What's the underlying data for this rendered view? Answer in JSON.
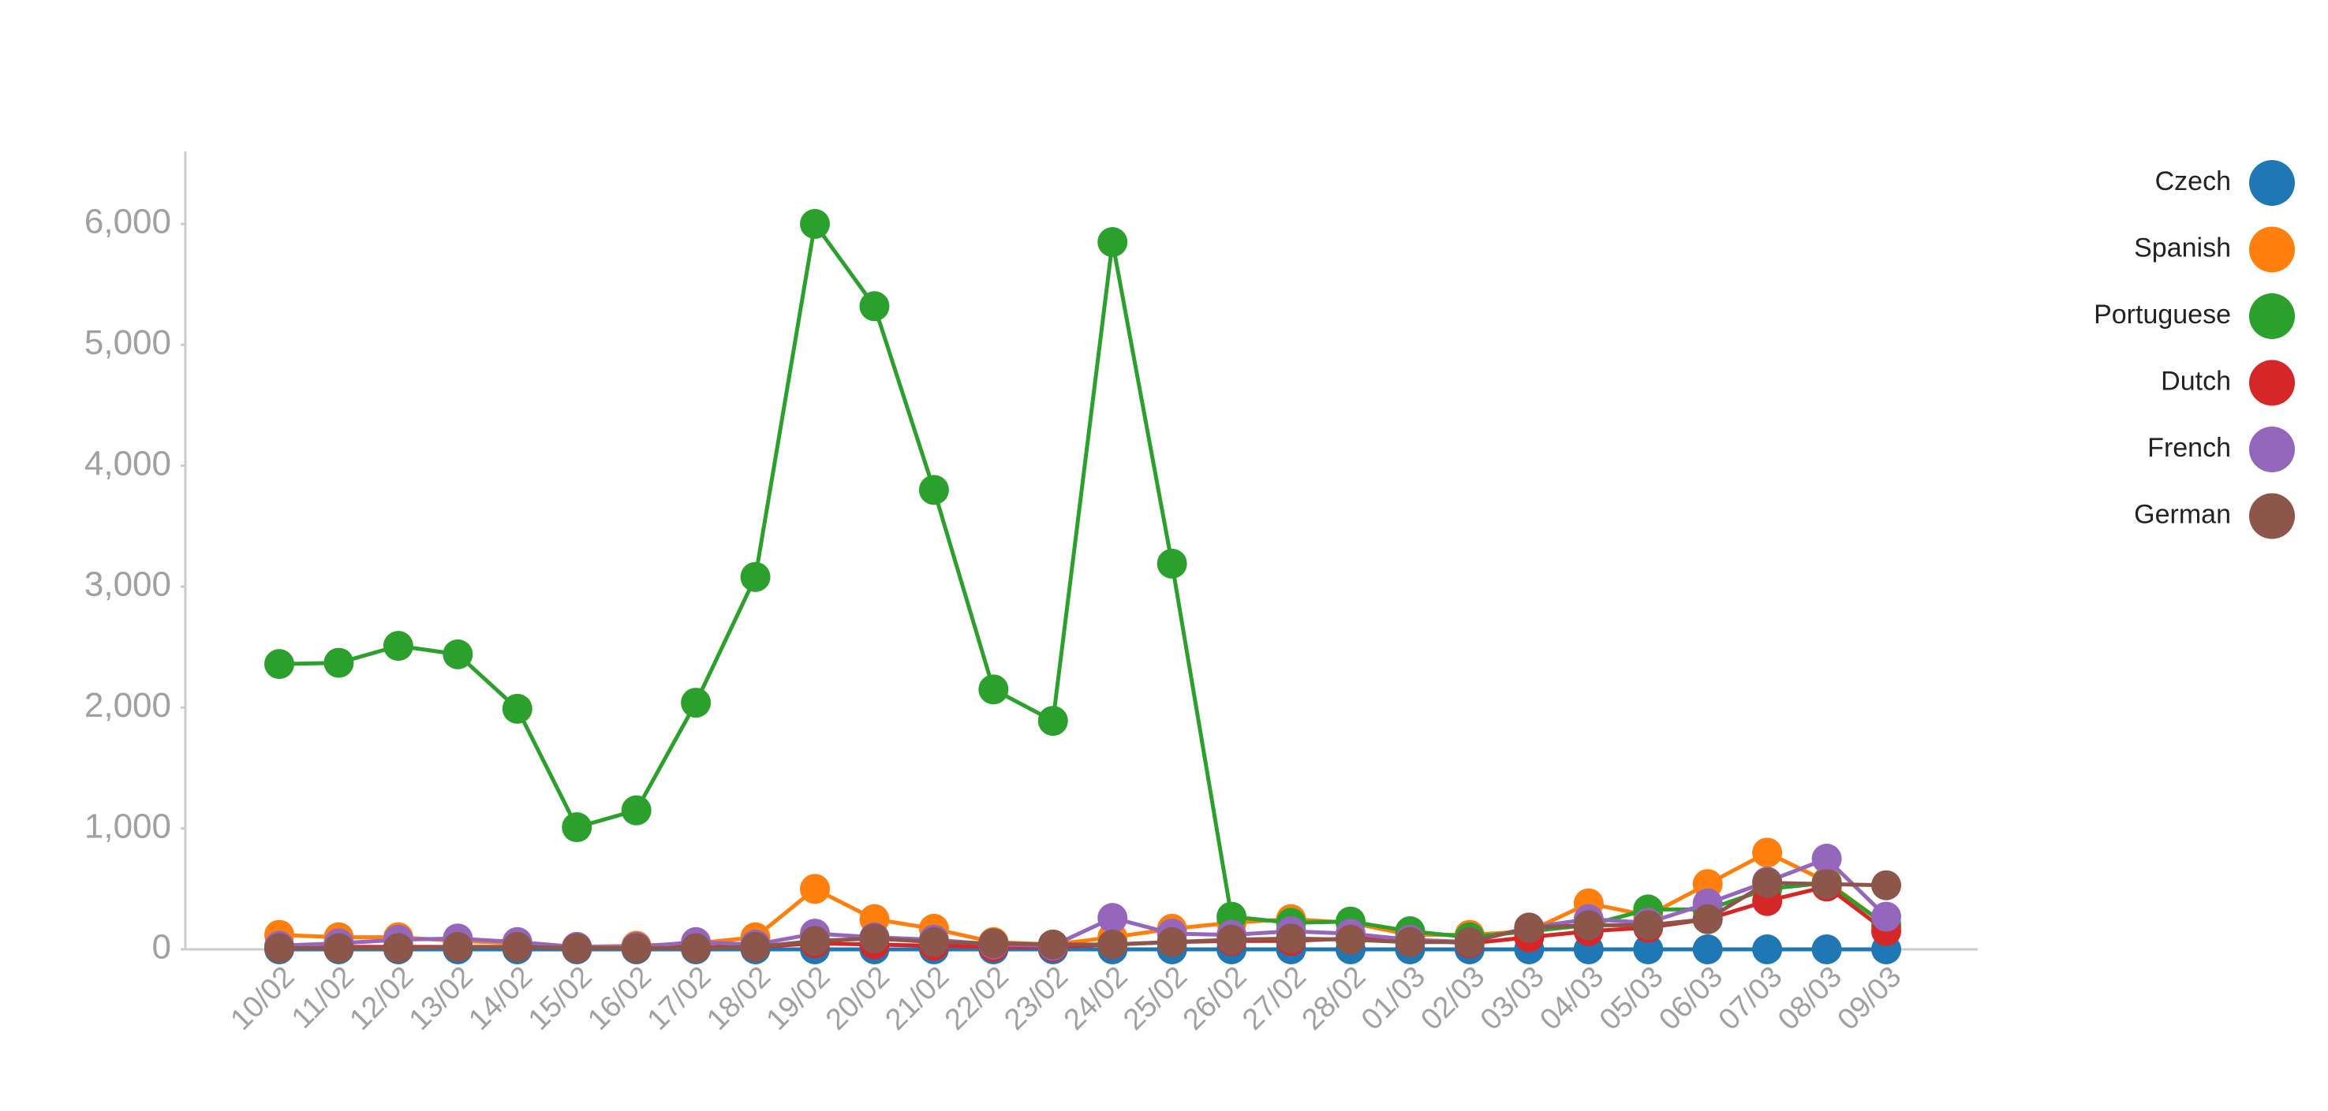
{
  "chart_data": {
    "type": "line",
    "categories": [
      "10/02",
      "11/02",
      "12/02",
      "13/02",
      "14/02",
      "15/02",
      "16/02",
      "17/02",
      "18/02",
      "19/02",
      "20/02",
      "21/02",
      "22/02",
      "23/02",
      "24/02",
      "25/02",
      "26/02",
      "27/02",
      "28/02",
      "01/03",
      "02/03",
      "03/03",
      "04/03",
      "05/03",
      "06/03",
      "07/03",
      "08/03",
      "09/03"
    ],
    "series": [
      {
        "name": "Czech",
        "color": "#1f77b4",
        "values": [
          0,
          0,
          0,
          0,
          0,
          0,
          0,
          0,
          0,
          0,
          0,
          0,
          0,
          0,
          0,
          0,
          0,
          0,
          0,
          0,
          0,
          0,
          0,
          0,
          0,
          0,
          0,
          0
        ]
      },
      {
        "name": "Spanish",
        "color": "#ff7f0e",
        "values": [
          120,
          100,
          100,
          70,
          50,
          20,
          30,
          50,
          100,
          500,
          250,
          170,
          60,
          40,
          100,
          170,
          220,
          250,
          220,
          120,
          120,
          150,
          380,
          280,
          540,
          800,
          560,
          200
        ]
      },
      {
        "name": "Portuguese",
        "color": "#2ca02c",
        "values": [
          2360,
          2370,
          2510,
          2440,
          1990,
          1010,
          1150,
          2040,
          3080,
          6000,
          5320,
          3800,
          2150,
          1890,
          5850,
          3190,
          270,
          220,
          230,
          150,
          100,
          150,
          200,
          330,
          330,
          500,
          550,
          200
        ]
      },
      {
        "name": "Dutch",
        "color": "#d62728",
        "values": [
          20,
          20,
          20,
          20,
          20,
          10,
          10,
          20,
          20,
          50,
          40,
          30,
          20,
          20,
          40,
          60,
          70,
          70,
          90,
          80,
          50,
          100,
          150,
          180,
          250,
          400,
          520,
          150
        ]
      },
      {
        "name": "French",
        "color": "#9467bd",
        "values": [
          30,
          50,
          80,
          90,
          60,
          20,
          20,
          60,
          40,
          130,
          100,
          80,
          40,
          30,
          260,
          130,
          120,
          150,
          130,
          80,
          60,
          180,
          250,
          220,
          380,
          560,
          750,
          270
        ]
      },
      {
        "name": "German",
        "color": "#8c564b",
        "values": [
          10,
          10,
          10,
          20,
          20,
          10,
          10,
          10,
          20,
          70,
          90,
          60,
          50,
          40,
          40,
          60,
          80,
          90,
          80,
          60,
          60,
          180,
          200,
          200,
          250,
          550,
          540,
          530
        ]
      }
    ],
    "ylim": [
      0,
      6600
    ],
    "yticks": [
      0,
      {
        "value": 1000,
        "label": "1,000"
      },
      {
        "value": 2000,
        "label": "2,000"
      },
      {
        "value": 3000,
        "label": "3,000"
      },
      {
        "value": 4000,
        "label": "4,000"
      },
      {
        "value": 5000,
        "label": "5,000"
      },
      {
        "value": 6000,
        "label": "6,000"
      }
    ],
    "legend": "top-right"
  }
}
